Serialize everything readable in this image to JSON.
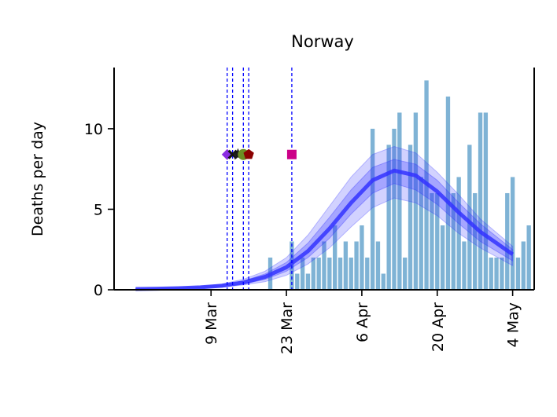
{
  "chart_data": {
    "type": "bar",
    "title": "Norway",
    "ylabel": "Deaths per day",
    "xlabel": "",
    "ylim": [
      0,
      13.8
    ],
    "yticks": [
      0,
      5,
      10
    ],
    "xticks": [
      {
        "date": "2020-03-09",
        "label": "9 Mar"
      },
      {
        "date": "2020-03-23",
        "label": "23 Mar"
      },
      {
        "date": "2020-04-06",
        "label": "6 Apr"
      },
      {
        "date": "2020-04-20",
        "label": "20 Apr"
      },
      {
        "date": "2020-05-04",
        "label": "4 May"
      }
    ],
    "xlim": [
      "2020-02-20",
      "2020-05-08"
    ],
    "bars": {
      "color": "#7fb3d5",
      "start_date": "2020-03-12",
      "values": [
        0,
        0,
        0,
        0,
        0,
        0,
        0,
        0,
        2,
        0,
        0,
        0,
        3,
        1,
        2,
        1,
        2,
        2,
        3,
        2,
        4,
        2,
        3,
        2,
        3,
        4,
        2,
        10,
        3,
        1,
        9,
        10,
        11,
        2,
        9,
        11,
        7,
        13,
        6,
        6,
        4,
        12,
        6,
        7,
        3,
        9,
        6,
        11,
        11,
        2,
        2,
        2,
        6,
        7,
        2,
        3,
        4
      ]
    },
    "model": {
      "color": "#3333ff",
      "x": [
        "2020-02-24",
        "2020-02-28",
        "2020-03-03",
        "2020-03-07",
        "2020-03-11",
        "2020-03-15",
        "2020-03-19",
        "2020-03-23",
        "2020-03-27",
        "2020-03-31",
        "2020-04-04",
        "2020-04-08",
        "2020-04-12",
        "2020-04-16",
        "2020-04-20",
        "2020-04-24",
        "2020-04-28",
        "2020-05-04"
      ],
      "mean": [
        0.05,
        0.07,
        0.1,
        0.15,
        0.25,
        0.45,
        0.8,
        1.4,
        2.4,
        3.8,
        5.4,
        6.8,
        7.4,
        7.1,
        6.1,
        4.8,
        3.6,
        2.2
      ],
      "inner_lo": [
        0.04,
        0.06,
        0.08,
        0.12,
        0.2,
        0.36,
        0.64,
        1.15,
        2.0,
        3.2,
        4.7,
        6.0,
        6.6,
        6.2,
        5.3,
        4.1,
        3.0,
        1.8
      ],
      "inner_hi": [
        0.06,
        0.08,
        0.12,
        0.18,
        0.3,
        0.55,
        0.98,
        1.7,
        2.9,
        4.5,
        6.2,
        7.6,
        8.1,
        7.8,
        6.8,
        5.4,
        4.1,
        2.5
      ],
      "outer_lo": [
        0.03,
        0.05,
        0.07,
        0.1,
        0.16,
        0.3,
        0.5,
        0.9,
        1.6,
        2.6,
        3.9,
        5.1,
        5.7,
        5.4,
        4.6,
        3.5,
        2.6,
        1.5
      ],
      "outer_hi": [
        0.07,
        0.1,
        0.14,
        0.21,
        0.36,
        0.65,
        1.15,
        2.0,
        3.4,
        5.2,
        7.0,
        8.4,
        8.9,
        8.5,
        7.3,
        5.9,
        4.4,
        2.7
      ]
    },
    "interventions": {
      "line_color": "#0000ff",
      "marker_y": 8.4,
      "dates": [
        "2020-03-12",
        "2020-03-13",
        "2020-03-15",
        "2020-03-16",
        "2020-03-24"
      ],
      "markers": [
        {
          "date": "2020-03-12",
          "shape": "diamond",
          "color": "#8a2be2"
        },
        {
          "date": "2020-03-13",
          "shape": "x",
          "color": "#111111"
        },
        {
          "date": "2020-03-14",
          "shape": "star",
          "color": "#1a1a1a"
        },
        {
          "date": "2020-03-15",
          "shape": "circle",
          "color": "#6b8e23"
        },
        {
          "date": "2020-03-16",
          "shape": "pentagon",
          "color": "#8b0000"
        },
        {
          "date": "2020-03-24",
          "shape": "square",
          "color": "#cc0088"
        }
      ]
    },
    "grid": false,
    "legend": "none"
  }
}
